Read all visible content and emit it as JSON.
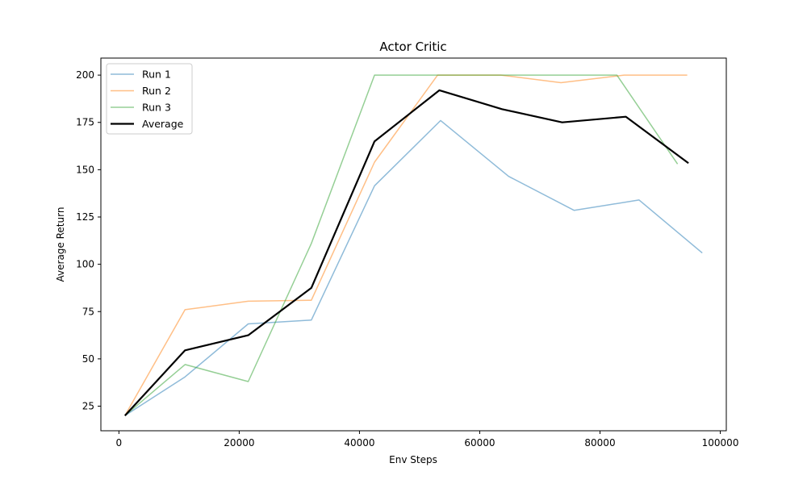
{
  "chart_data": {
    "type": "line",
    "title": "Actor Critic",
    "xlabel": "Env Steps",
    "ylabel": "Average Return",
    "xlim": [
      -3000,
      101000
    ],
    "ylim": [
      12,
      209
    ],
    "xticks": [
      0,
      20000,
      40000,
      60000,
      80000,
      100000
    ],
    "yticks": [
      25,
      50,
      75,
      100,
      125,
      150,
      175,
      200
    ],
    "grid": false,
    "legend_position": "top-left",
    "series": [
      {
        "name": "Run 1",
        "color": "#1f77b4",
        "alpha": 0.5,
        "x": [
          1000,
          11000,
          21500,
          32000,
          42500,
          53500,
          64800,
          75700,
          86500,
          97000
        ],
        "y": [
          20,
          40.5,
          68.5,
          70.5,
          141.5,
          176,
          146.5,
          128.5,
          134,
          106
        ]
      },
      {
        "name": "Run 2",
        "color": "#ff7f0e",
        "alpha": 0.5,
        "x": [
          1000,
          11000,
          21500,
          32000,
          42500,
          53000,
          63500,
          73500,
          84000,
          94500
        ],
        "y": [
          20,
          76,
          80.5,
          81,
          154,
          200,
          200,
          196,
          200,
          200
        ]
      },
      {
        "name": "Run 3",
        "color": "#2ca02c",
        "alpha": 0.5,
        "x": [
          1000,
          11000,
          21500,
          32000,
          42500,
          53000,
          63000,
          73000,
          82800,
          92900
        ],
        "y": [
          20,
          47,
          38,
          111,
          200,
          200,
          200,
          200,
          200,
          153
        ]
      },
      {
        "name": "Average",
        "color": "#000000",
        "alpha": 1.0,
        "x": [
          1000,
          11000,
          21500,
          32000,
          42500,
          53300,
          63700,
          73700,
          84300,
          94700
        ],
        "y": [
          20,
          54.5,
          62.5,
          87.5,
          165,
          192,
          182,
          175,
          178,
          153.5
        ]
      }
    ]
  }
}
